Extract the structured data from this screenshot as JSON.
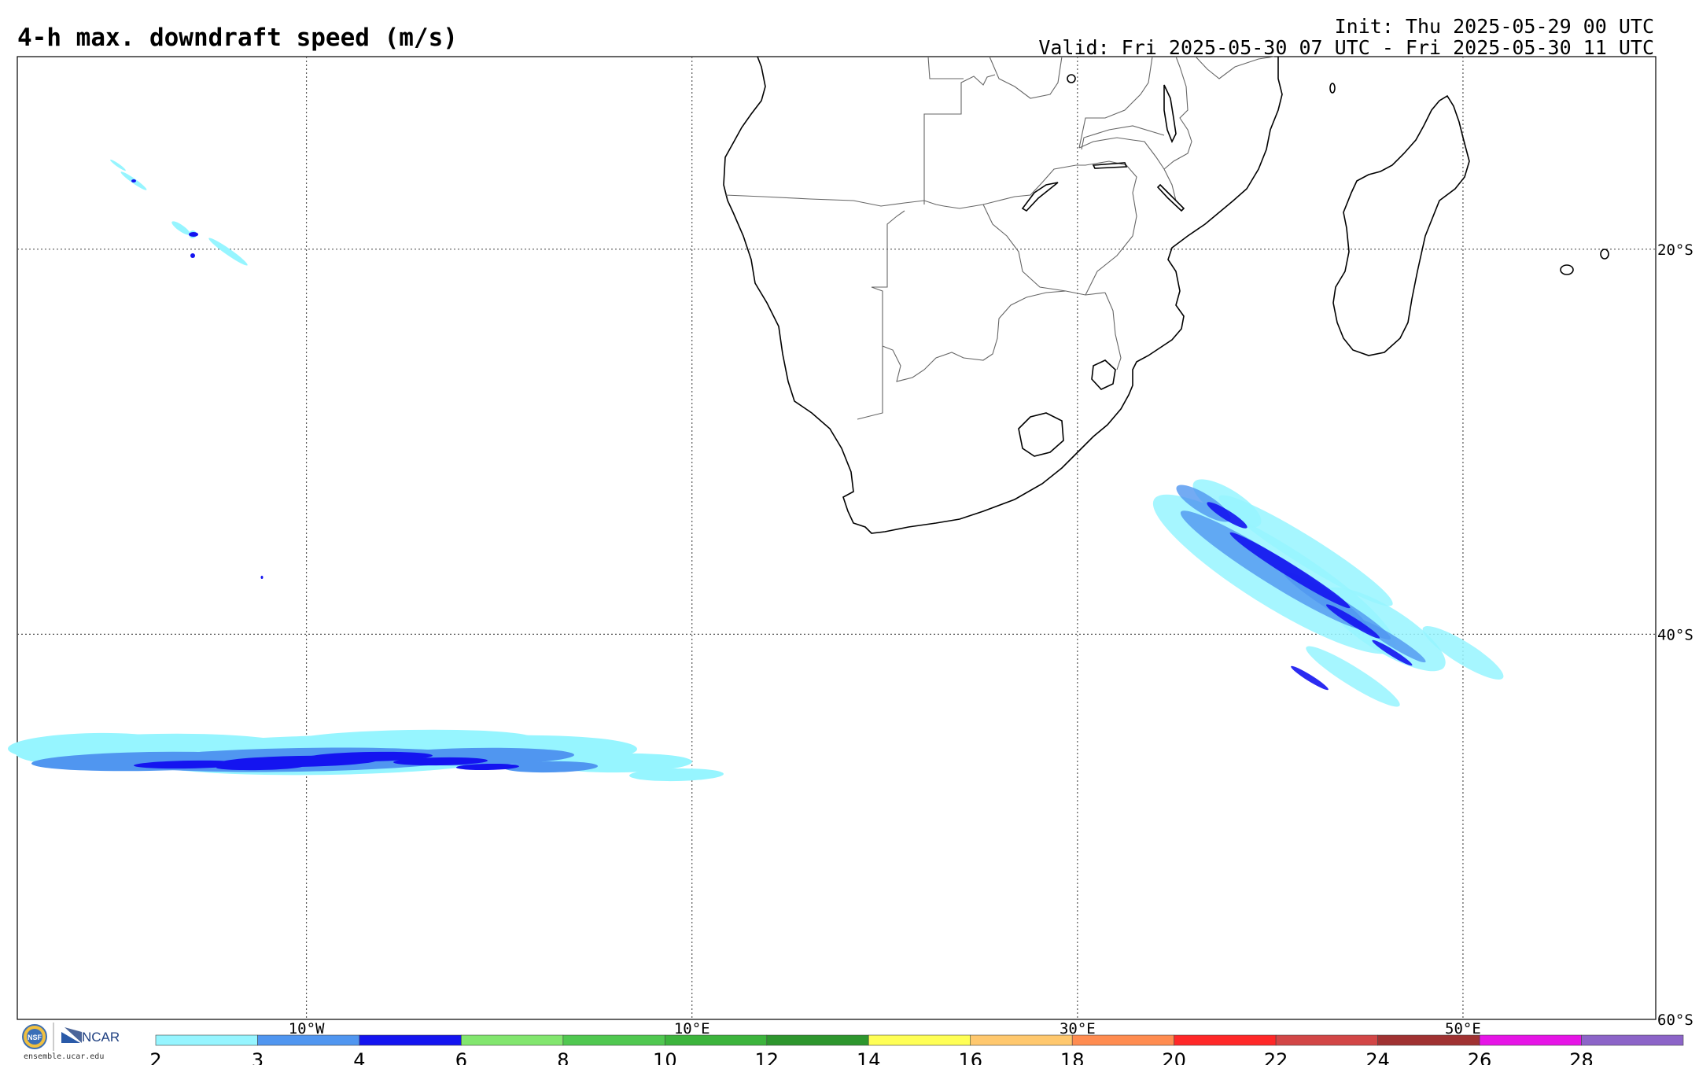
{
  "header": {
    "title": "4-h max. downdraft speed (m/s)",
    "init": "Init: Thu 2025-05-29 00 UTC",
    "valid": "Valid: Fri 2025-05-30 07 UTC - Fri 2025-05-30 11 UTC"
  },
  "map": {
    "lon_range": [
      -25,
      60
    ],
    "lat_range": [
      -60,
      -10
    ],
    "lon_ticks": [
      {
        "value": -10,
        "label": "10°W"
      },
      {
        "value": 10,
        "label": "10°E"
      },
      {
        "value": 30,
        "label": "30°E"
      },
      {
        "value": 50,
        "label": "50°E"
      }
    ],
    "lat_ticks": [
      {
        "value": -20,
        "label": "20°S"
      },
      {
        "value": -40,
        "label": "40°S"
      },
      {
        "value": -60,
        "label": "60°S"
      }
    ],
    "grid": "dotted",
    "coastline_color": "#000000",
    "border_color": "#555555"
  },
  "colorbar": {
    "levels": [
      "2",
      "3",
      "4",
      "6",
      "8",
      "10",
      "12",
      "14",
      "16",
      "18",
      "20",
      "22",
      "24",
      "26",
      "28"
    ],
    "colors": [
      "#96f5ff",
      "#5096f0",
      "#1414f0",
      "#82e66e",
      "#50c850",
      "#3cb43c",
      "#2d962d",
      "#ffff55",
      "#ffc86e",
      "#ff8c50",
      "#ff2828",
      "#d24646",
      "#a03232",
      "#e614e6",
      "#8c64c8"
    ]
  },
  "logo": {
    "nsf": "NSF",
    "ncar": "NCAR",
    "url": "ensemble.ucar.edu"
  }
}
